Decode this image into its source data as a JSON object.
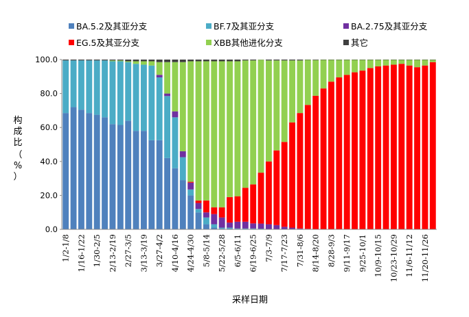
{
  "chart_data": {
    "type": "bar",
    "stacked": true,
    "xlabel": "采样日期",
    "ylabel": "构成比（%）",
    "ylabel_chars": [
      "构",
      "成",
      "比",
      "（",
      "%",
      "）"
    ],
    "ylim": [
      0,
      100
    ],
    "yticks": [
      "0.0",
      "20.0",
      "40.0",
      "60.0",
      "80.0",
      "100.0"
    ],
    "grid": false,
    "legend_position": "top",
    "categories": [
      "1/2-1/8",
      "1/9-1/15",
      "1/16-1/22",
      "1/23-1/29",
      "1/30-2/5",
      "2/6-2/12",
      "2/13-2/19",
      "2/20-2/26",
      "2/27-3/5",
      "3/6-3/12",
      "3/13-3/19",
      "3/20-3/26",
      "3/27-4/2",
      "4/3-4/9",
      "4/10-4/16",
      "4/17-4/23",
      "4/24-4/30",
      "5/1-5/7",
      "5/8-5/14",
      "5/15-5/21",
      "5/22-5/28",
      "5/29-6/4",
      "6/5-6/11",
      "6/12-6/18",
      "6/19-6/25",
      "6/26-7/2",
      "7/3-7/9",
      "7/10-7/16",
      "7/17-7/23",
      "7/24-7/30",
      "7/31-8/6",
      "8/7-8/13",
      "8/14-8/20",
      "8/21-8/27",
      "8/28-9/3",
      "9/4-9/10",
      "9/11-9/17",
      "9/18-9/24",
      "9/25-10/1",
      "10/2-10/8",
      "10/9-10/15",
      "10/16-10/22",
      "10/23-10/29",
      "10/30-11/5",
      "11/6-11/12",
      "11/13-11/19",
      "11/20-11/26",
      "11/27-12/3"
    ],
    "x_tick_labels": [
      "1/2-1/8",
      "",
      "1/16-1/22",
      "",
      "1/30-2/5",
      "",
      "2/13-2/19",
      "",
      "2/27-3/5",
      "",
      "3/13-3/19",
      "",
      "3/27-4/2",
      "",
      "4/10-4/16",
      "",
      "4/24-4/30",
      "",
      "5/8-5/14",
      "",
      "5/22-5/28",
      "",
      "6/5-6/11",
      "",
      "6/19-6/25",
      "",
      "7/3-7/9",
      "",
      "7/17-7/23",
      "",
      "7/31-8/6",
      "",
      "8/14-8/20",
      "",
      "8/28-9/3",
      "",
      "9/11-9/17",
      "",
      "9/25-10/1",
      "",
      "10/9-10/15",
      "",
      "10/23-10/29",
      "",
      "11/6-11/12",
      "",
      "11/20-11/26",
      ""
    ],
    "series": [
      {
        "name": "BA.5.2及其亚分支",
        "color": "#4f81bd",
        "values": [
          68.5,
          72,
          70.5,
          68.5,
          67.5,
          66,
          62,
          61.5,
          64,
          58,
          58,
          52.5,
          52.5,
          42,
          36,
          29,
          20,
          10,
          3,
          1,
          0.5,
          0.5,
          0.2,
          0.2,
          0.2,
          0.2,
          0,
          0,
          0,
          0,
          0,
          0,
          0,
          0,
          0,
          0,
          0,
          0,
          0,
          0,
          0,
          0,
          0,
          0,
          0,
          0,
          0,
          0
        ]
      },
      {
        "name": "BF.7及其亚分支",
        "color": "#4bacc6",
        "values": [
          31,
          27.5,
          29,
          31,
          32,
          33.5,
          37,
          37.5,
          34.5,
          39.5,
          39,
          44,
          37,
          36.5,
          30,
          13.5,
          3.5,
          2,
          4,
          2,
          0.5,
          0.5,
          0.3,
          0.3,
          0.3,
          0.2,
          0,
          0,
          0,
          0,
          0,
          0,
          0,
          0,
          0,
          0,
          0,
          0,
          0,
          0,
          0,
          0,
          0,
          0,
          0,
          0,
          0,
          0
        ]
      },
      {
        "name": "BA.2.75及其亚分支",
        "color": "#7030a0",
        "values": [
          0,
          0,
          0,
          0,
          0,
          0,
          0,
          0,
          0,
          0,
          0,
          0,
          1.5,
          1.5,
          3.5,
          3.5,
          4,
          3.5,
          3,
          6,
          6,
          3,
          4,
          4,
          3,
          3,
          3,
          2.5,
          1.5,
          1,
          0.5,
          0.3,
          0.2,
          0,
          0,
          0,
          0,
          0,
          0,
          0,
          0,
          0,
          0,
          0,
          0,
          0,
          0,
          0
        ]
      },
      {
        "name": "EG.5及其亚分支",
        "color": "#ff0000",
        "values": [
          0,
          0,
          0,
          0,
          0,
          0,
          0,
          0,
          0,
          0,
          0,
          0,
          0,
          0,
          0,
          0,
          0.5,
          1.5,
          7,
          4,
          6,
          15,
          15,
          20,
          23,
          30,
          37,
          44,
          50,
          62,
          68,
          73,
          78.5,
          83,
          87,
          89.5,
          91,
          92.5,
          93.5,
          95,
          96,
          96.5,
          97,
          97.5,
          96.5,
          95.5,
          96.5,
          98.5
        ]
      },
      {
        "name": "XBB其他进化分支",
        "color": "#92d050",
        "values": [
          0,
          0,
          0,
          0,
          0,
          0,
          0.5,
          0.5,
          0.5,
          1.5,
          2,
          2.5,
          7.5,
          18.5,
          29,
          52.5,
          71,
          82,
          82,
          86,
          86,
          80,
          79.5,
          75,
          73,
          66.5,
          59.5,
          53,
          48,
          36.5,
          31,
          26.5,
          21,
          16.8,
          12.8,
          10.3,
          8.8,
          7.3,
          6.3,
          4.8,
          3.8,
          3.3,
          2.8,
          2.3,
          3.3,
          4.3,
          3.3,
          1.3
        ]
      },
      {
        "name": "其它",
        "color": "#3f3f3f",
        "values": [
          0.5,
          0.5,
          0.5,
          0.5,
          0.5,
          0.5,
          0.5,
          0.5,
          1,
          1,
          1,
          1,
          1.5,
          1.5,
          1.5,
          1.5,
          1,
          1,
          1,
          1,
          1,
          1,
          1,
          0.5,
          0.5,
          0.1,
          0.5,
          0.5,
          0.5,
          0.5,
          0.5,
          0.2,
          0.3,
          0.2,
          0.2,
          0.2,
          0.2,
          0.2,
          0.2,
          0.2,
          0.2,
          0.2,
          0.2,
          0.2,
          0.2,
          0.2,
          0.2,
          0.2
        ]
      }
    ]
  }
}
